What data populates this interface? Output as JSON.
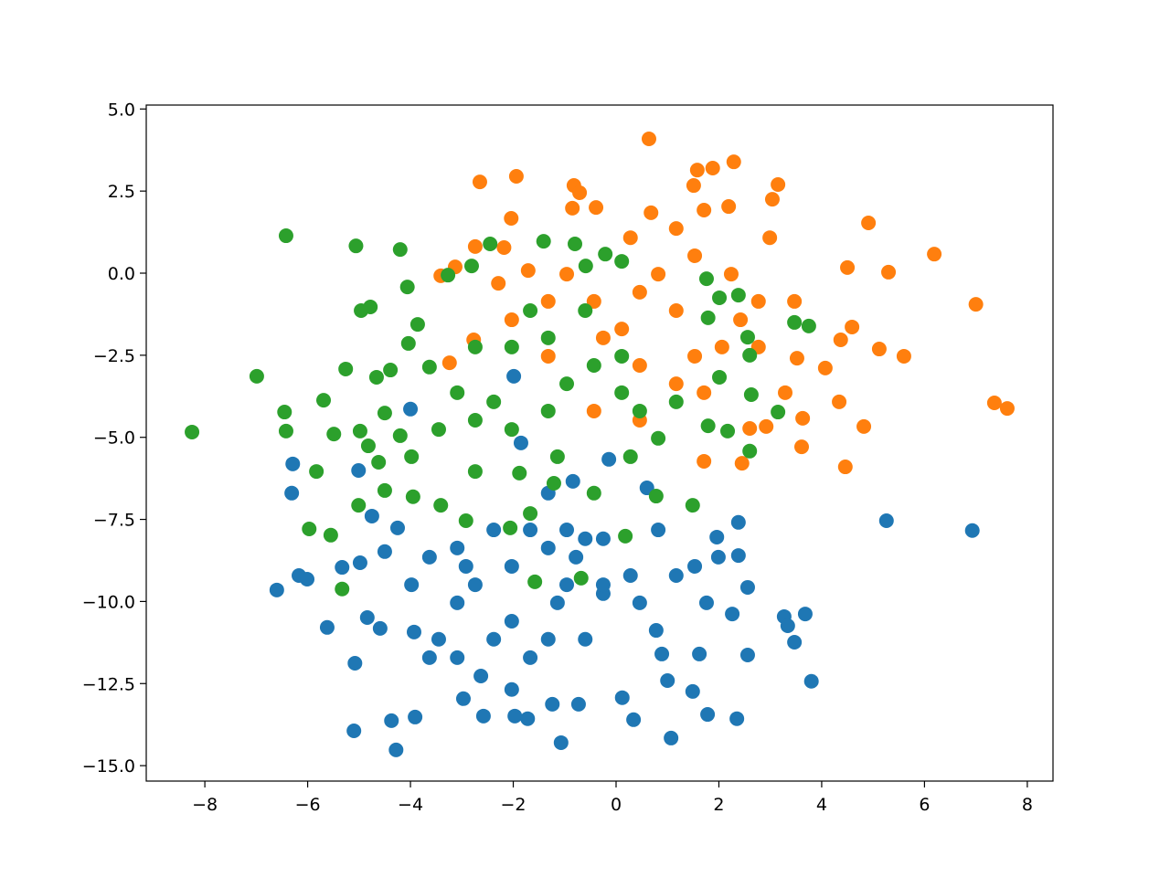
{
  "chart_data": {
    "type": "scatter",
    "xlim": [
      -9.14,
      8.5
    ],
    "ylim": [
      -15.47,
      5.12
    ],
    "xticks": [
      {
        "value": -8,
        "label": "−8"
      },
      {
        "value": -6,
        "label": "−6"
      },
      {
        "value": -4,
        "label": "−4"
      },
      {
        "value": -2,
        "label": "−2"
      },
      0,
      2,
      4,
      6,
      8
    ],
    "yticks": [
      {
        "value": 5,
        "label": "5.0"
      },
      {
        "value": 2.5,
        "label": "2.5"
      },
      {
        "value": 0,
        "label": "0.0"
      },
      {
        "value": -2.5,
        "label": "−2.5"
      },
      {
        "value": -5,
        "label": "−5.0"
      },
      {
        "value": -7.5,
        "label": "−7.5"
      },
      {
        "value": -10,
        "label": "−10.0"
      },
      {
        "value": -12.5,
        "label": "−12.5"
      },
      {
        "value": -15,
        "label": "−15.0"
      }
    ],
    "grid": false,
    "series": [
      {
        "color": "#1f77b4",
        "x": [
          6.93,
          5.26,
          3.8,
          3.68,
          3.47,
          3.27,
          3.34,
          2.56,
          2.56,
          2.35,
          2.38,
          2.38,
          1.96,
          1.99,
          1.78,
          1.07,
          -1.07,
          -4.28,
          -4.37,
          -3.91,
          -5.1,
          -5.08,
          -5.62,
          -6.6,
          -6.17,
          -6.01,
          -6.31,
          -6.29,
          -5.01,
          -4.75,
          -4.0,
          -5.33,
          -4.98,
          -4.5,
          -4.25,
          -4.84,
          -4.59,
          -3.93,
          -2.97,
          -2.58,
          -2.03,
          -1.97,
          -1.72,
          -1.24,
          -0.73,
          0.12,
          0.34,
          1.0,
          1.49,
          1.62,
          2.26,
          1.76,
          0.89,
          0.78,
          -1.32,
          -0.6,
          -0.96,
          -2.03,
          -2.74,
          -3.09,
          -2.03,
          -1.32,
          -0.25,
          0.28,
          -2.38,
          -3.45,
          -1.67,
          -0.6,
          0.46,
          1.17,
          1.53,
          -3.09,
          -3.63,
          -2.38,
          -1.67,
          -0.96,
          -0.25,
          -1.32,
          -0.84,
          -0.14,
          -1.85,
          -1.99,
          0.6,
          0.82,
          -3.09,
          -3.63,
          -2.63,
          -0.25,
          -1.14,
          -3.98,
          -2.92,
          -0.78
        ],
        "values": [
          -7.84,
          -7.54,
          -12.43,
          -10.38,
          -11.24,
          -10.46,
          -10.74,
          -9.57,
          -11.63,
          -13.57,
          -7.59,
          -8.6,
          -8.04,
          -8.65,
          -13.44,
          -14.16,
          -14.3,
          -14.52,
          -13.63,
          -13.52,
          -13.94,
          -11.88,
          -10.79,
          -9.65,
          -9.21,
          -9.32,
          -6.7,
          -5.81,
          -6.01,
          -7.4,
          -4.14,
          -8.96,
          -8.82,
          -8.48,
          -7.76,
          -10.49,
          -10.82,
          -10.93,
          -12.96,
          -13.49,
          -12.68,
          -13.49,
          -13.57,
          -13.13,
          -13.13,
          -12.93,
          -13.6,
          -12.41,
          -12.74,
          -11.6,
          -10.38,
          -10.04,
          -11.6,
          -10.88,
          -8.37,
          -8.09,
          -9.49,
          -8.93,
          -9.49,
          -10.04,
          -10.6,
          -11.15,
          -9.76,
          -9.21,
          -11.15,
          -11.15,
          -11.71,
          -11.15,
          -10.04,
          -9.21,
          -8.93,
          -8.37,
          -8.65,
          -7.82,
          -7.82,
          -7.82,
          -8.09,
          -6.7,
          -6.34,
          -5.67,
          -5.17,
          -3.14,
          -6.54,
          -7.82,
          -11.71,
          -11.71,
          -12.27,
          -9.49,
          -10.04,
          -9.49,
          -8.93,
          -8.65
        ]
      },
      {
        "color": "#ff7f0e",
        "x": [
          0.64,
          7.0,
          7.36,
          7.61,
          6.19,
          5.3,
          4.91,
          4.5,
          5.6,
          5.12,
          4.59,
          4.37,
          4.34,
          4.82,
          4.46,
          4.07,
          3.63,
          3.61,
          3.52,
          3.15,
          3.04,
          2.99,
          2.29,
          1.88,
          1.58,
          1.51,
          2.19,
          0.68,
          -0.82,
          -0.71,
          -0.85,
          -0.39,
          -1.94,
          -2.65,
          -2.04,
          -2.18,
          -1.71,
          -3.41,
          -3.13,
          -2.74,
          -2.77,
          -3.24,
          1.71,
          2.45,
          2.6,
          2.92,
          1.71,
          1.53,
          1.17,
          0.46,
          0.11,
          0.82,
          1.53,
          2.24,
          2.77,
          -0.43,
          -0.96,
          -1.32,
          -0.25,
          0.46,
          1.17,
          2.06,
          2.77,
          2.42,
          0.28,
          1.17,
          1.71,
          -0.43,
          0.46,
          -1.32,
          -2.03,
          -2.29,
          3.47,
          3.29
        ],
        "values": [
          4.09,
          -0.95,
          -3.95,
          -4.12,
          0.58,
          0.03,
          1.53,
          0.17,
          -2.53,
          -2.31,
          -1.64,
          -2.03,
          -3.92,
          -4.67,
          -5.9,
          -2.89,
          -4.42,
          -5.29,
          -2.59,
          2.7,
          2.25,
          1.08,
          3.39,
          3.2,
          3.14,
          2.67,
          2.03,
          1.84,
          2.67,
          2.45,
          1.98,
          2.0,
          2.95,
          2.78,
          1.67,
          0.78,
          0.08,
          -0.08,
          0.19,
          0.81,
          -2.03,
          -2.73,
          -5.73,
          -5.79,
          -4.73,
          -4.67,
          -3.64,
          -2.53,
          -1.14,
          -0.58,
          -1.7,
          -0.03,
          0.53,
          -0.03,
          -0.86,
          -0.86,
          -0.03,
          -0.86,
          -1.97,
          -2.81,
          -3.37,
          -2.25,
          -2.25,
          -1.42,
          1.08,
          1.36,
          1.92,
          -4.2,
          -4.48,
          -2.53,
          -1.42,
          -0.31,
          -0.86,
          -3.64
        ]
      },
      {
        "color": "#2ca02c",
        "x": [
          -8.25,
          -6.99,
          -6.42,
          -6.45,
          -6.42,
          -5.83,
          -5.97,
          -5.69,
          -5.55,
          -5.33,
          -5.49,
          -5.26,
          -5.06,
          -4.78,
          -4.96,
          -5.01,
          -4.2,
          -4.06,
          -4.98,
          -4.82,
          -4.62,
          -4.5,
          -4.5,
          -4.2,
          -4.66,
          -4.39,
          -3.95,
          -4.04,
          -3.86,
          -3.63,
          -3.27,
          -2.81,
          -2.45,
          -1.41,
          -0.8,
          -0.21,
          -0.59,
          0.11,
          1.76,
          2.38,
          2.01,
          1.79,
          3.47,
          3.75,
          3.15,
          2.56,
          2.6,
          2.01,
          2.17,
          1.79,
          2.6,
          2.63,
          1.49,
          0.78,
          0.18,
          -0.68,
          -1.58,
          -2.06,
          -1.67,
          -1.88,
          -1.21,
          -2.74,
          -2.92,
          -3.41,
          -3.98,
          -3.45,
          -3.09,
          -2.38,
          -2.03,
          -1.32,
          -0.96,
          -0.43,
          0.11,
          0.46,
          0.82,
          1.17,
          0.11,
          -0.6,
          -1.32,
          -2.03,
          -2.74,
          -1.67,
          -1.14,
          -0.43,
          0.28,
          -2.74
        ],
        "values": [
          -4.84,
          -3.14,
          1.14,
          -4.23,
          -4.81,
          -6.04,
          -7.79,
          -3.87,
          -7.98,
          -9.62,
          -4.9,
          -2.92,
          0.83,
          -1.03,
          -1.14,
          -7.07,
          0.72,
          -0.42,
          -4.81,
          -5.26,
          -5.76,
          -6.62,
          -4.26,
          -4.95,
          -3.17,
          -2.95,
          -6.81,
          -2.14,
          -1.56,
          -2.86,
          -0.06,
          0.22,
          0.89,
          0.97,
          0.89,
          0.58,
          0.22,
          0.36,
          -0.17,
          -0.67,
          -0.75,
          -1.36,
          -1.5,
          -1.61,
          -4.23,
          -1.95,
          -2.5,
          -3.17,
          -4.81,
          -4.65,
          -5.42,
          -3.7,
          -7.07,
          -6.79,
          -8.01,
          -9.29,
          -9.4,
          -7.76,
          -7.32,
          -6.09,
          -6.4,
          -6.04,
          -7.54,
          -7.07,
          -5.59,
          -4.76,
          -3.64,
          -3.92,
          -4.76,
          -4.2,
          -3.37,
          -2.81,
          -3.64,
          -4.2,
          -5.03,
          -3.92,
          -2.53,
          -1.14,
          -1.97,
          -2.25,
          -2.25,
          -1.14,
          -5.59,
          -6.7,
          -5.59,
          -4.48
        ]
      }
    ]
  }
}
